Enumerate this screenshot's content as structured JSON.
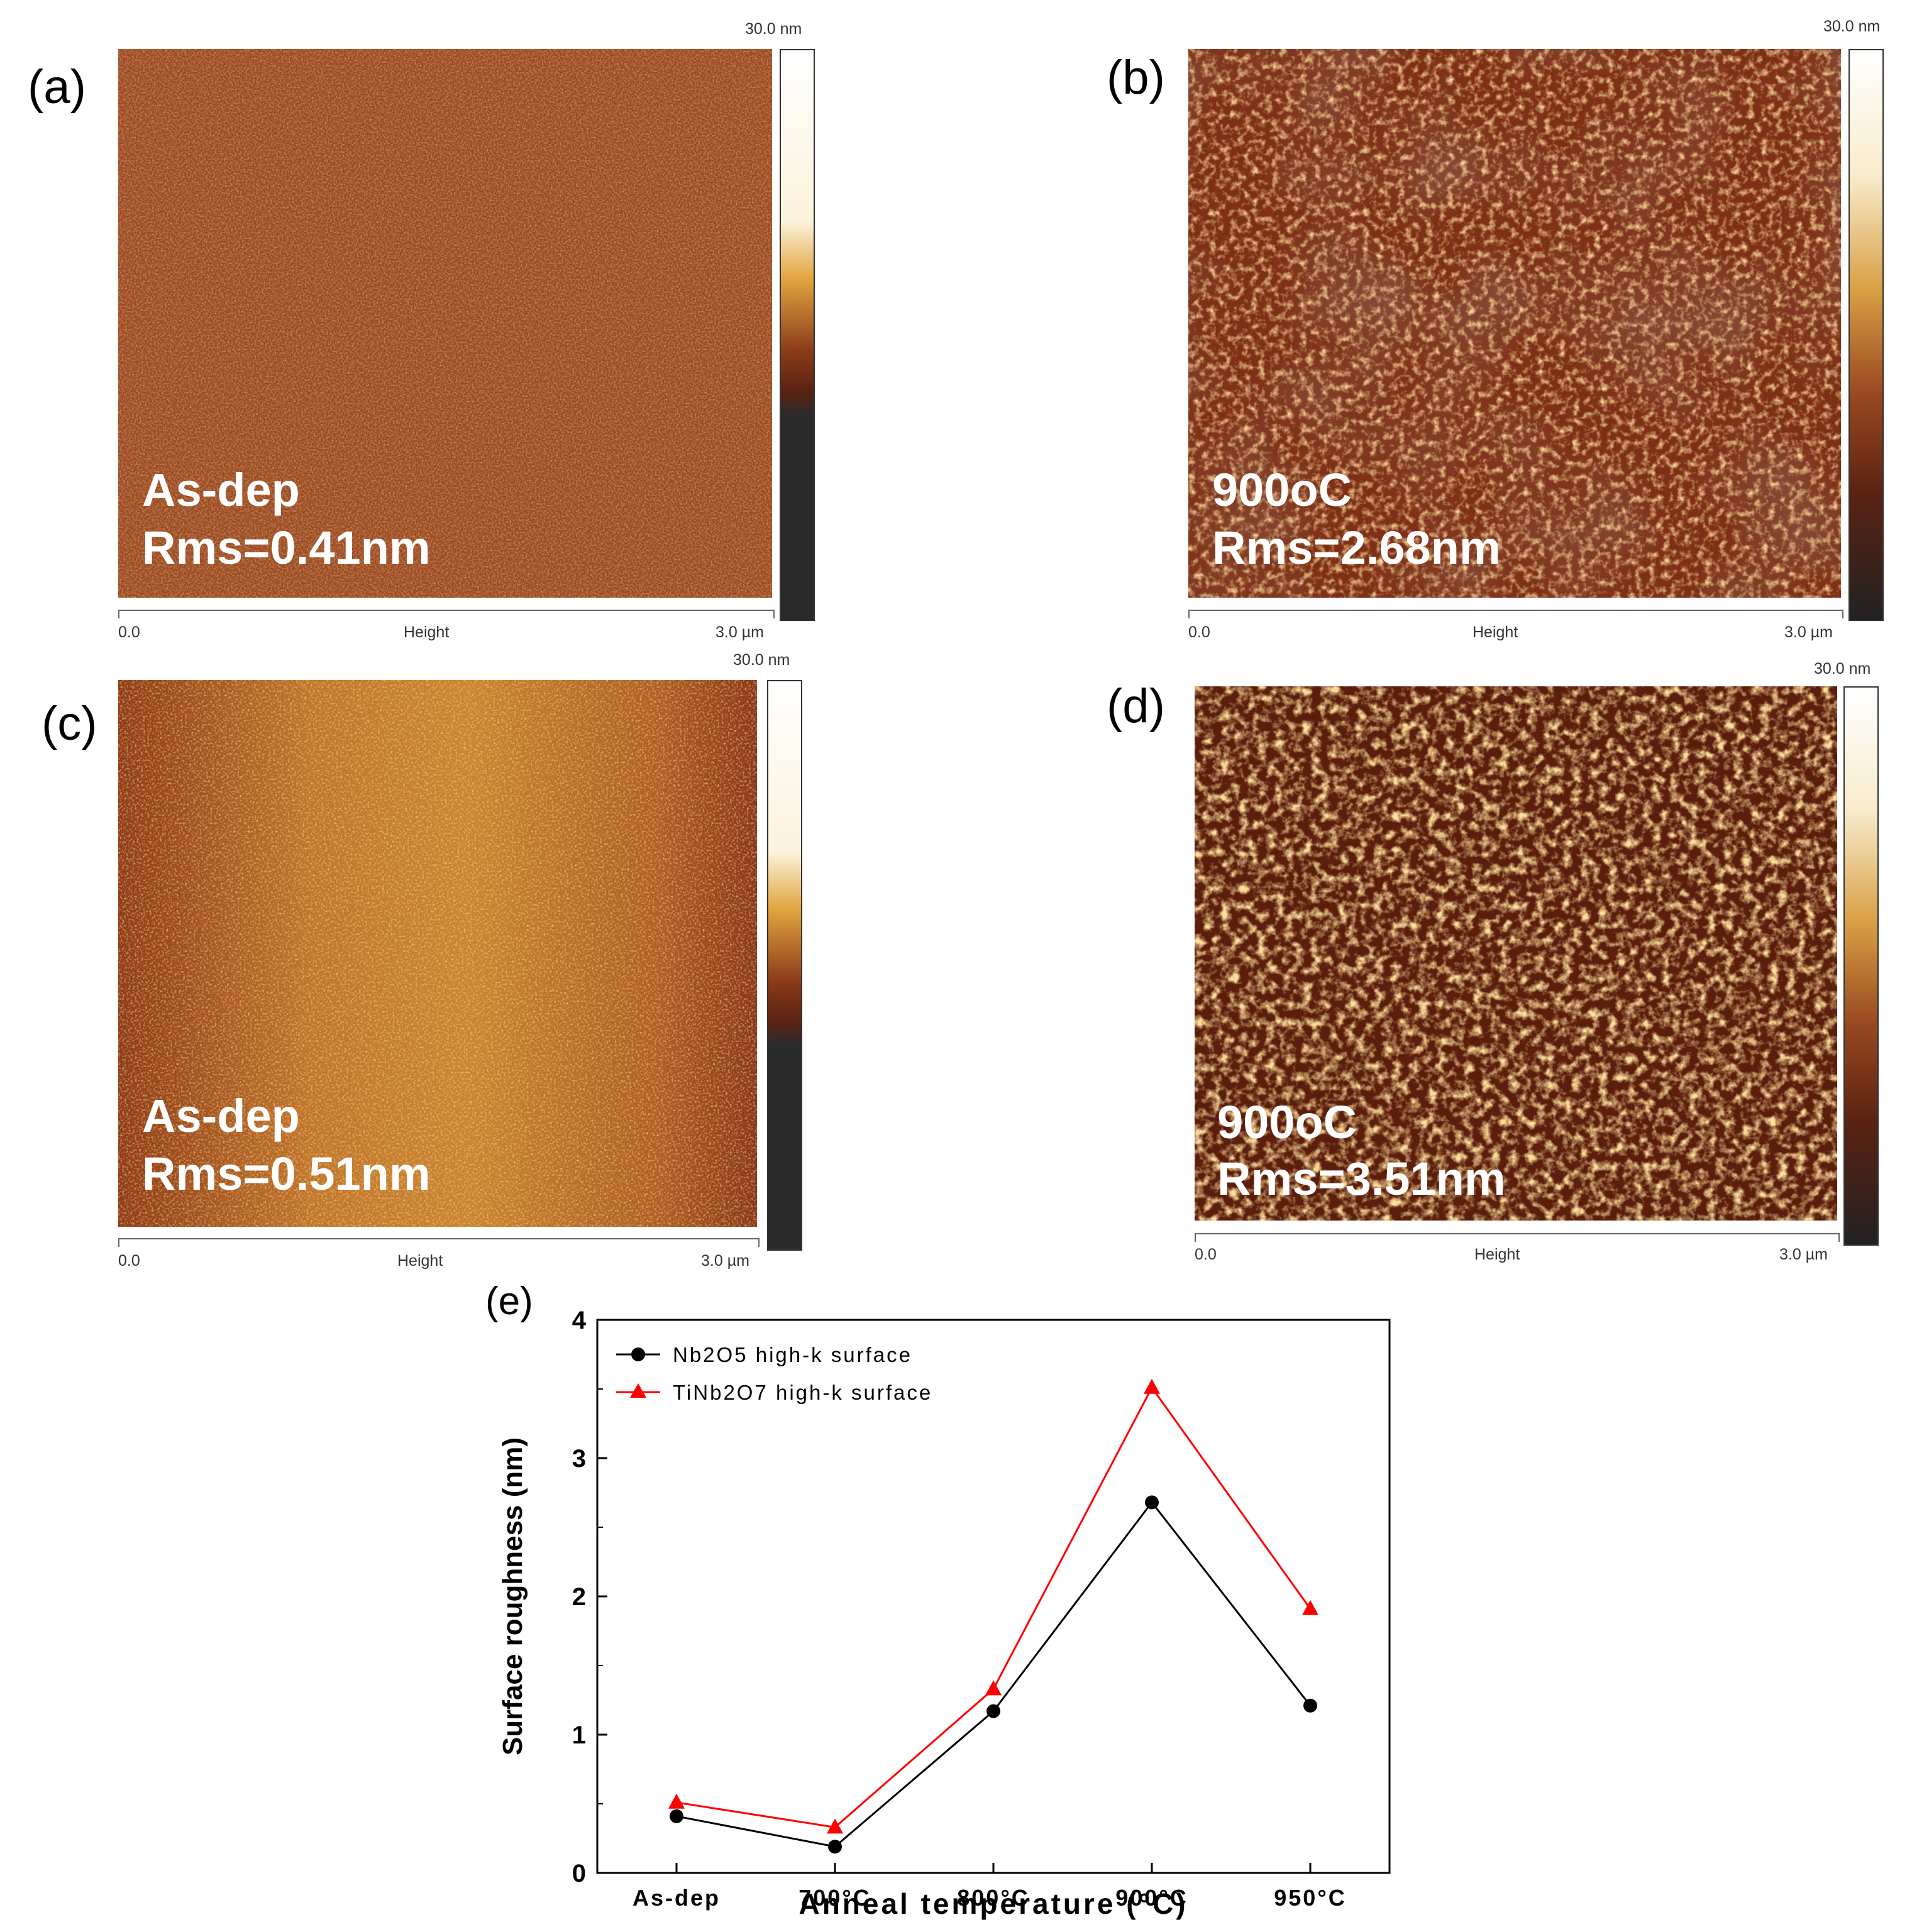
{
  "panels": [
    {
      "letter": "(a)",
      "sample_label": "As-dep",
      "rms_label": "Rms=0.41nm",
      "scale_max": "30.0 nm",
      "axis_start": "0.0",
      "axis_mid": "Height",
      "axis_end": "3.0 µm"
    },
    {
      "letter": "(b)",
      "sample_label": "900oC",
      "rms_label": "Rms=2.68nm",
      "scale_max": "30.0 nm",
      "axis_start": "0.0",
      "axis_mid": "Height",
      "axis_end": "3.0 µm"
    },
    {
      "letter": "(c)",
      "sample_label": "As-dep",
      "rms_label": "Rms=0.51nm",
      "scale_max": "30.0 nm",
      "axis_start": "0.0",
      "axis_mid": "Height",
      "axis_end": "3.0 µm"
    },
    {
      "letter": "(d)",
      "sample_label": "900oC",
      "rms_label": "Rms=3.51nm",
      "scale_max": "30.0 nm",
      "axis_start": "0.0",
      "axis_mid": "Height",
      "axis_end": "3.0 µm"
    }
  ],
  "colors": {
    "afm_dark": "#2a1a10",
    "afm_mid": "#8a3a18",
    "afm_light": "#e0a040",
    "afm_white": "#ffffff",
    "series1": "#000000",
    "series2": "#ff0000"
  },
  "chart_letter": "(e)",
  "chart_data": {
    "type": "line",
    "categories": [
      "As-dep",
      "700°C",
      "800°C",
      "900°C",
      "950°C"
    ],
    "xlabel": "Anneal temperature (°C)",
    "ylabel": "Surface roughness (nm)",
    "ylim": [
      0,
      4
    ],
    "yticks": [
      "0",
      "1",
      "2",
      "3",
      "4"
    ],
    "legend_position": "top-left",
    "series": [
      {
        "name": "Nb2O5 high-k surface",
        "marker": "circle",
        "color": "#000000",
        "values": [
          0.41,
          0.19,
          1.17,
          2.68,
          1.21
        ]
      },
      {
        "name": "TiNb2O7 high-k surface",
        "marker": "triangle",
        "color": "#ff0000",
        "values": [
          0.51,
          0.33,
          1.33,
          3.51,
          1.91
        ]
      }
    ]
  }
}
